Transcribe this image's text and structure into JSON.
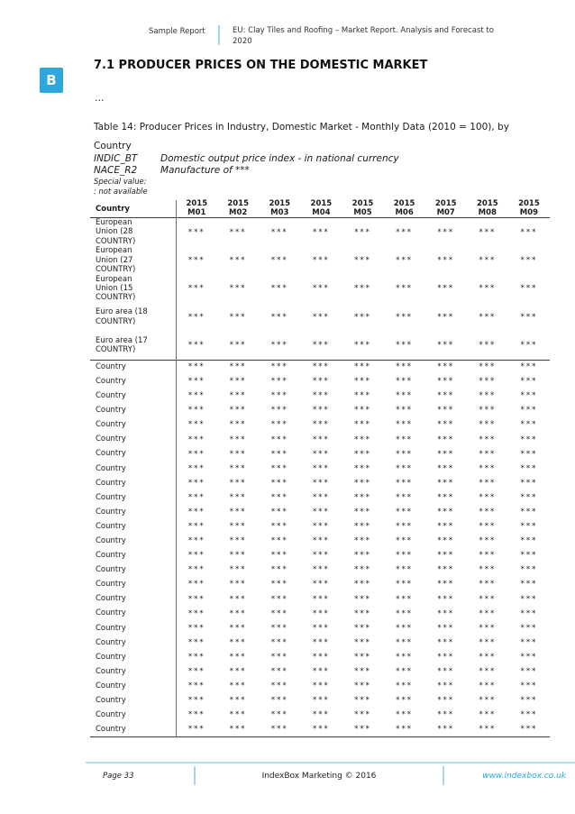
{
  "header": {
    "doc_type": "Sample Report",
    "title_lines": [
      "EU: Clay Tiles and Roofing – Market Report. Analysis and Forecast to",
      "2020"
    ]
  },
  "logo_letter": "B",
  "section_heading": "7.1 PRODUCER PRICES ON THE DOMESTIC MARKET",
  "ellipsis": "…",
  "table_caption": "Table 14: Producer Prices in Industry, Domestic Market - Monthly Data (2010 = 100), by Country",
  "meta_rows": [
    {
      "code": "INDIC_BT",
      "desc": "Domestic output price index - in national currency"
    },
    {
      "code": "NACE_R2",
      "desc": "Manufacture of ***"
    }
  ],
  "special_value_label": "Special value:",
  "special_value_note": ": not available",
  "table": {
    "country_header": "Country",
    "columns": [
      {
        "year": "2015",
        "month": "M01"
      },
      {
        "year": "2015",
        "month": "M02"
      },
      {
        "year": "2015",
        "month": "M03"
      },
      {
        "year": "2015",
        "month": "M04"
      },
      {
        "year": "2015",
        "month": "M05"
      },
      {
        "year": "2015",
        "month": "M06"
      },
      {
        "year": "2015",
        "month": "M07"
      },
      {
        "year": "2015",
        "month": "M08"
      },
      {
        "year": "2015",
        "month": "M09"
      }
    ],
    "group_rows": [
      "European Union (28 COUNTRY)",
      "European Union (27 COUNTRY)",
      "European Union (15 COUNTRY)",
      "Euro area (18 COUNTRY)",
      "Euro area (17 COUNTRY)"
    ],
    "country_row_label": "Country",
    "country_row_count": 26,
    "cell_value": "***"
  },
  "footer": {
    "page_label": "Page 33",
    "copyright": "IndexBox Marketing © 2016",
    "website": "www.indexbox.co.uk"
  },
  "colors": {
    "accent_blue": "#2ea7dd",
    "link_blue": "#29a9e0",
    "light_rule_blue": "#a5d8f0",
    "table_rule_dark": "#3c3c3c"
  }
}
